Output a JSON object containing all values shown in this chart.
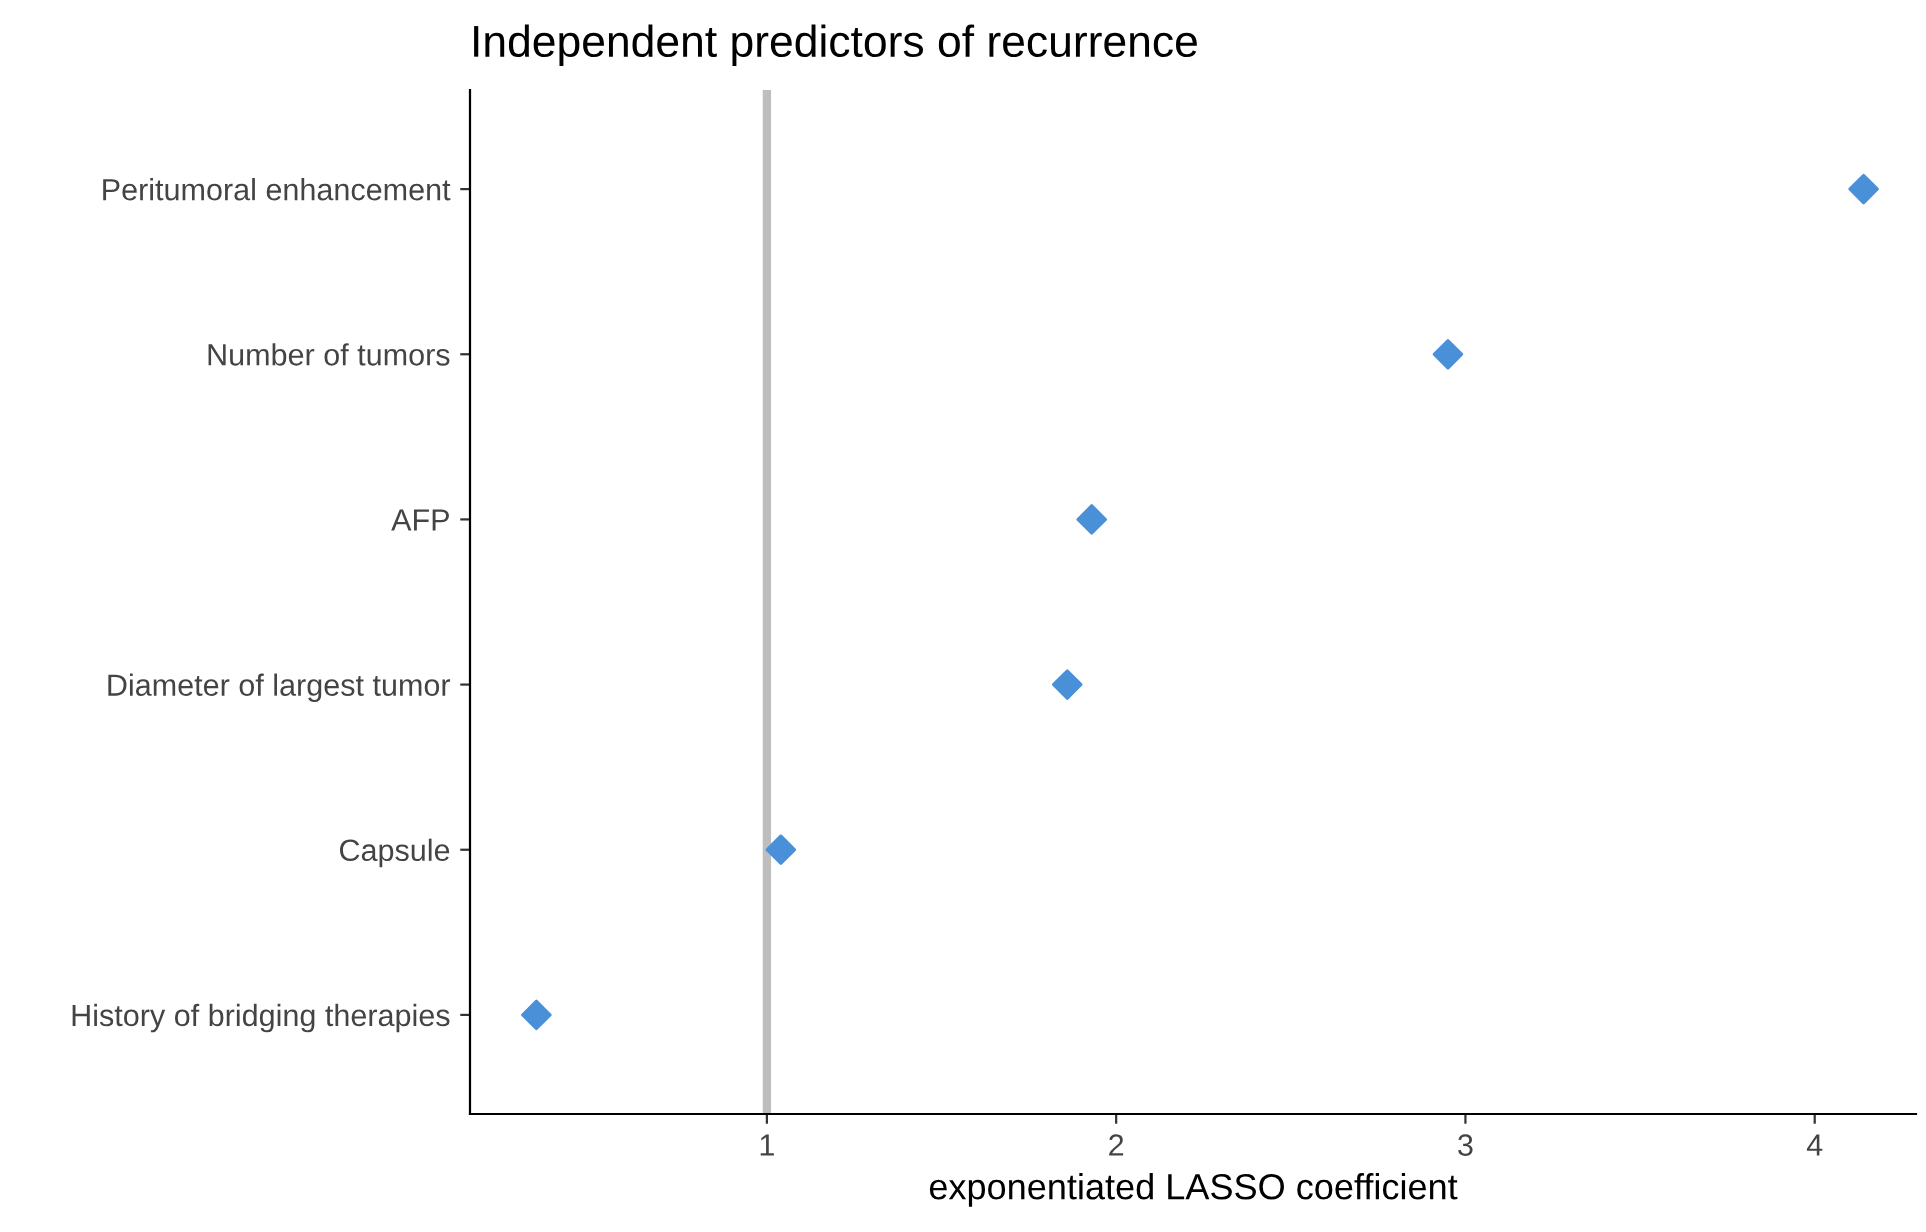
{
  "chart_data": {
    "type": "scatter",
    "title": "Independent predictors of recurrence",
    "xlabel": "exponentiated LASSO coefficient",
    "orientation": "horizontal",
    "categories": [
      "Peritumoral enhancement",
      "Number of tumors",
      "AFP",
      "Diameter of largest tumor",
      "Capsule",
      "History of bridging therapies"
    ],
    "series": [
      {
        "color": "#4a90d9",
        "values": [
          4.14,
          2.95,
          1.93,
          1.86,
          1.04,
          0.34
        ]
      }
    ],
    "xlim": [
      0.15,
      4.29
    ],
    "xticks": [
      1,
      2,
      3,
      4
    ],
    "marker": "diamond",
    "grid": false,
    "legend": false,
    "ref_lines": [
      {
        "axis": "x",
        "value": 1,
        "color": "#bebebe",
        "line_style": "solid"
      }
    ]
  }
}
